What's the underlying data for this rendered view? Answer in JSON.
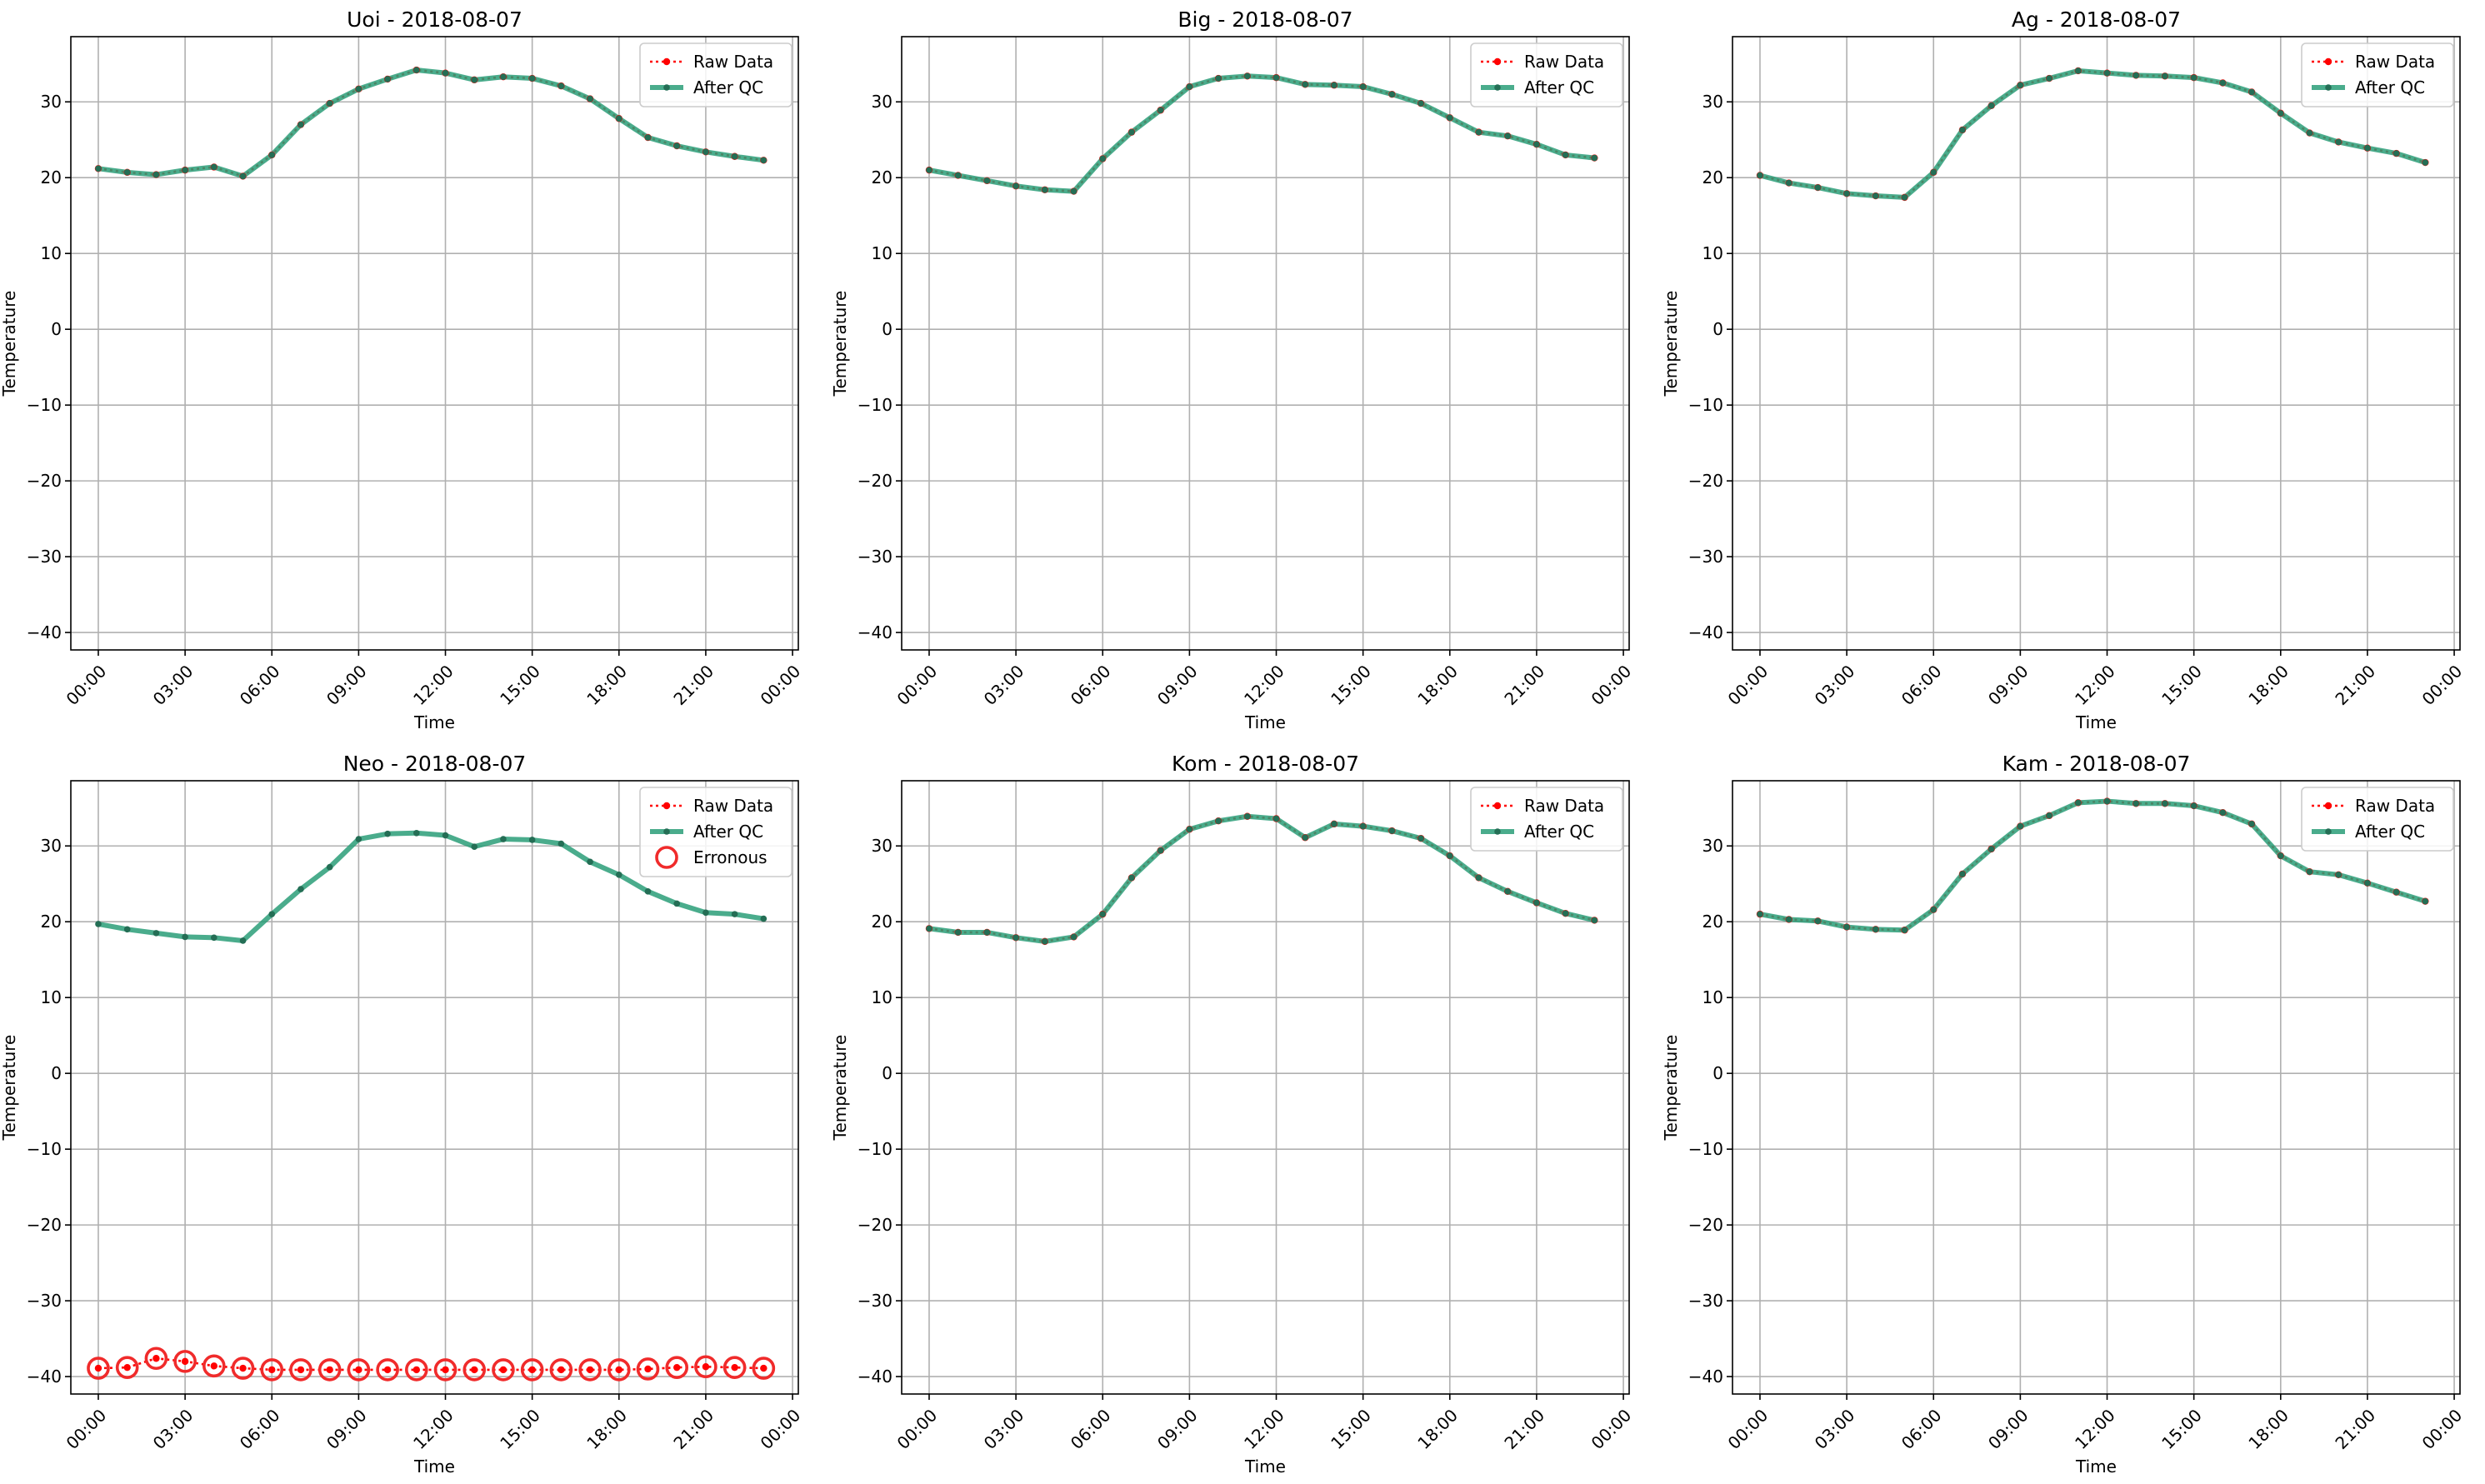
{
  "chart_data": [
    {
      "type": "line",
      "title": "Uoi - 2018-08-07",
      "xlabel": "Time",
      "ylabel": "Temperature",
      "x_tick_labels": [
        "00:00",
        "03:00",
        "06:00",
        "09:00",
        "12:00",
        "15:00",
        "18:00",
        "21:00",
        "00:00"
      ],
      "y_ticks": [
        -40,
        -30,
        -20,
        -10,
        0,
        10,
        20,
        30
      ],
      "ylim": [
        -42.3,
        38.6
      ],
      "xlim_hours": [
        -0.95,
        24.2
      ],
      "grid": true,
      "legend_position": "upper right",
      "legend": [
        "Raw Data",
        "After QC"
      ],
      "hours": [
        0,
        1,
        2,
        3,
        4,
        5,
        6,
        7,
        8,
        9,
        10,
        11,
        12,
        13,
        14,
        15,
        16,
        17,
        18,
        19,
        20,
        21,
        22,
        23
      ],
      "series": [
        {
          "name": "Raw Data",
          "values": [
            21.2,
            20.7,
            20.4,
            21.0,
            21.4,
            20.2,
            23.0,
            27.0,
            29.8,
            31.7,
            33.0,
            34.2,
            33.8,
            32.9,
            33.3,
            33.1,
            32.1,
            30.4,
            27.8,
            25.3,
            24.2,
            23.4,
            22.8,
            22.3
          ]
        },
        {
          "name": "After QC",
          "values": [
            21.2,
            20.7,
            20.4,
            21.0,
            21.4,
            20.2,
            23.0,
            27.0,
            29.8,
            31.7,
            33.0,
            34.2,
            33.8,
            32.9,
            33.3,
            33.1,
            32.1,
            30.4,
            27.8,
            25.3,
            24.2,
            23.4,
            22.8,
            22.3
          ]
        }
      ]
    },
    {
      "type": "line",
      "title": "Big - 2018-08-07",
      "xlabel": "Time",
      "ylabel": "Temperature",
      "x_tick_labels": [
        "00:00",
        "03:00",
        "06:00",
        "09:00",
        "12:00",
        "15:00",
        "18:00",
        "21:00",
        "00:00"
      ],
      "y_ticks": [
        -40,
        -30,
        -20,
        -10,
        0,
        10,
        20,
        30
      ],
      "ylim": [
        -42.3,
        38.6
      ],
      "xlim_hours": [
        -0.95,
        24.2
      ],
      "grid": true,
      "legend_position": "upper right",
      "legend": [
        "Raw Data",
        "After QC"
      ],
      "hours": [
        0,
        1,
        2,
        3,
        4,
        5,
        6,
        7,
        8,
        9,
        10,
        11,
        12,
        13,
        14,
        15,
        16,
        17,
        18,
        19,
        20,
        21,
        22,
        23
      ],
      "series": [
        {
          "name": "Raw Data",
          "values": [
            21.0,
            20.3,
            19.6,
            18.9,
            18.4,
            18.2,
            22.5,
            26.0,
            28.9,
            32.0,
            33.1,
            33.4,
            33.2,
            32.3,
            32.2,
            32.0,
            31.0,
            29.8,
            27.9,
            26.0,
            25.5,
            24.4,
            23.0,
            22.6
          ]
        },
        {
          "name": "After QC",
          "values": [
            21.0,
            20.3,
            19.6,
            18.9,
            18.4,
            18.2,
            22.5,
            26.0,
            28.9,
            32.0,
            33.1,
            33.4,
            33.2,
            32.3,
            32.2,
            32.0,
            31.0,
            29.8,
            27.9,
            26.0,
            25.5,
            24.4,
            23.0,
            22.6
          ]
        }
      ]
    },
    {
      "type": "line",
      "title": "Ag - 2018-08-07",
      "xlabel": "Time",
      "ylabel": "Temperature",
      "x_tick_labels": [
        "00:00",
        "03:00",
        "06:00",
        "09:00",
        "12:00",
        "15:00",
        "18:00",
        "21:00",
        "00:00"
      ],
      "y_ticks": [
        -40,
        -30,
        -20,
        -10,
        0,
        10,
        20,
        30
      ],
      "ylim": [
        -42.3,
        38.6
      ],
      "xlim_hours": [
        -0.95,
        24.2
      ],
      "grid": true,
      "legend_position": "upper right",
      "legend": [
        "Raw Data",
        "After QC"
      ],
      "hours": [
        0,
        1,
        2,
        3,
        4,
        5,
        6,
        7,
        8,
        9,
        10,
        11,
        12,
        13,
        14,
        15,
        16,
        17,
        18,
        19,
        20,
        21,
        22,
        23
      ],
      "series": [
        {
          "name": "Raw Data",
          "values": [
            20.3,
            19.3,
            18.7,
            17.9,
            17.6,
            17.4,
            20.7,
            26.3,
            29.5,
            32.2,
            33.1,
            34.1,
            33.8,
            33.5,
            33.4,
            33.2,
            32.5,
            31.3,
            28.5,
            25.9,
            24.7,
            23.9,
            23.2,
            22.0
          ]
        },
        {
          "name": "After QC",
          "values": [
            20.3,
            19.3,
            18.7,
            17.9,
            17.6,
            17.4,
            20.7,
            26.3,
            29.5,
            32.2,
            33.1,
            34.1,
            33.8,
            33.5,
            33.4,
            33.2,
            32.5,
            31.3,
            28.5,
            25.9,
            24.7,
            23.9,
            23.2,
            22.0
          ]
        }
      ]
    },
    {
      "type": "line",
      "title": "Neo - 2018-08-07",
      "xlabel": "Time",
      "ylabel": "Temperature",
      "x_tick_labels": [
        "00:00",
        "03:00",
        "06:00",
        "09:00",
        "12:00",
        "15:00",
        "18:00",
        "21:00",
        "00:00"
      ],
      "y_ticks": [
        -40,
        -30,
        -20,
        -10,
        0,
        10,
        20,
        30
      ],
      "ylim": [
        -42.3,
        38.6
      ],
      "xlim_hours": [
        -0.95,
        24.2
      ],
      "grid": true,
      "legend_position": "upper right",
      "legend": [
        "Raw Data",
        "After QC",
        "Erronous"
      ],
      "hours": [
        0,
        1,
        2,
        3,
        4,
        5,
        6,
        7,
        8,
        9,
        10,
        11,
        12,
        13,
        14,
        15,
        16,
        17,
        18,
        19,
        20,
        21,
        22,
        23
      ],
      "series": [
        {
          "name": "Raw Data",
          "values": [
            -38.9,
            -38.8,
            -37.6,
            -38.0,
            -38.6,
            -38.9,
            -39.1,
            -39.1,
            -39.1,
            -39.1,
            -39.1,
            -39.1,
            -39.1,
            -39.1,
            -39.1,
            -39.1,
            -39.1,
            -39.1,
            -39.1,
            -39.0,
            -38.8,
            -38.7,
            -38.8,
            -38.9
          ]
        },
        {
          "name": "After QC",
          "values": [
            19.7,
            19.0,
            18.5,
            18.0,
            17.9,
            17.5,
            21.0,
            24.3,
            27.2,
            30.9,
            31.6,
            31.7,
            31.4,
            29.9,
            30.9,
            30.8,
            30.3,
            27.9,
            26.2,
            24.0,
            22.4,
            21.2,
            21.0,
            20.4
          ]
        },
        {
          "name": "Erronous",
          "values": [
            -38.9,
            -38.8,
            -37.6,
            -38.0,
            -38.6,
            -38.9,
            -39.1,
            -39.1,
            -39.1,
            -39.1,
            -39.1,
            -39.1,
            -39.1,
            -39.1,
            -39.1,
            -39.1,
            -39.1,
            -39.1,
            -39.1,
            -39.0,
            -38.8,
            -38.7,
            -38.8,
            -38.9
          ]
        }
      ]
    },
    {
      "type": "line",
      "title": "Kom - 2018-08-07",
      "xlabel": "Time",
      "ylabel": "Temperature",
      "x_tick_labels": [
        "00:00",
        "03:00",
        "06:00",
        "09:00",
        "12:00",
        "15:00",
        "18:00",
        "21:00",
        "00:00"
      ],
      "y_ticks": [
        -40,
        -30,
        -20,
        -10,
        0,
        10,
        20,
        30
      ],
      "ylim": [
        -42.3,
        38.6
      ],
      "xlim_hours": [
        -0.95,
        24.2
      ],
      "grid": true,
      "legend_position": "upper right",
      "legend": [
        "Raw Data",
        "After QC"
      ],
      "hours": [
        0,
        1,
        2,
        3,
        4,
        5,
        6,
        7,
        8,
        9,
        10,
        11,
        12,
        13,
        14,
        15,
        16,
        17,
        18,
        19,
        20,
        21,
        22,
        23
      ],
      "series": [
        {
          "name": "Raw Data",
          "values": [
            19.1,
            18.6,
            18.6,
            17.9,
            17.4,
            18.0,
            21.0,
            25.8,
            29.4,
            32.2,
            33.3,
            33.9,
            33.6,
            31.1,
            32.9,
            32.6,
            32.0,
            31.0,
            28.7,
            25.8,
            24.0,
            22.5,
            21.1,
            20.2
          ]
        },
        {
          "name": "After QC",
          "values": [
            19.1,
            18.6,
            18.6,
            17.9,
            17.4,
            18.0,
            21.0,
            25.8,
            29.4,
            32.2,
            33.3,
            33.9,
            33.6,
            31.1,
            32.9,
            32.6,
            32.0,
            31.0,
            28.7,
            25.8,
            24.0,
            22.5,
            21.1,
            20.2
          ]
        }
      ]
    },
    {
      "type": "line",
      "title": "Kam - 2018-08-07",
      "xlabel": "Time",
      "ylabel": "Temperature",
      "x_tick_labels": [
        "00:00",
        "03:00",
        "06:00",
        "09:00",
        "12:00",
        "15:00",
        "18:00",
        "21:00",
        "00:00"
      ],
      "y_ticks": [
        -40,
        -30,
        -20,
        -10,
        0,
        10,
        20,
        30
      ],
      "ylim": [
        -42.3,
        38.6
      ],
      "xlim_hours": [
        -0.95,
        24.2
      ],
      "grid": true,
      "legend_position": "upper right",
      "legend": [
        "Raw Data",
        "After QC"
      ],
      "hours": [
        0,
        1,
        2,
        3,
        4,
        5,
        6,
        7,
        8,
        9,
        10,
        11,
        12,
        13,
        14,
        15,
        16,
        17,
        18,
        19,
        20,
        21,
        22,
        23
      ],
      "series": [
        {
          "name": "Raw Data",
          "values": [
            21.0,
            20.3,
            20.1,
            19.3,
            19.0,
            18.9,
            21.6,
            26.3,
            29.6,
            32.6,
            34.0,
            35.7,
            35.9,
            35.6,
            35.6,
            35.3,
            34.4,
            32.9,
            28.7,
            26.6,
            26.2,
            25.1,
            23.9,
            22.7
          ]
        },
        {
          "name": "After QC",
          "values": [
            21.0,
            20.3,
            20.1,
            19.3,
            19.0,
            18.9,
            21.6,
            26.3,
            29.6,
            32.6,
            34.0,
            35.7,
            35.9,
            35.6,
            35.6,
            35.3,
            34.4,
            32.9,
            28.7,
            26.6,
            26.2,
            25.1,
            23.9,
            22.7
          ]
        }
      ]
    }
  ],
  "colors": {
    "raw": "#ff0000",
    "qc_line": "#2a9d78",
    "qc_marker": "#246e55",
    "erroneous": "#f02b2b",
    "grid": "#b0b0b0",
    "axis": "#000000"
  }
}
